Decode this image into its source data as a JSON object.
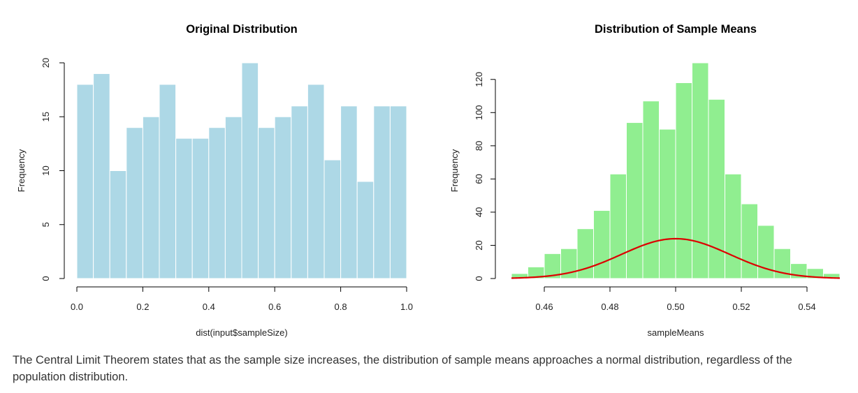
{
  "chart_data": [
    {
      "type": "bar",
      "title": "Original Distribution",
      "xlabel": "dist(input$sampleSize)",
      "ylabel": "Frequency",
      "bin_width": 0.05,
      "x_start": 0.0,
      "xlim": [
        0.0,
        1.0
      ],
      "ylim": [
        0,
        20
      ],
      "xticks": [
        0.0,
        0.2,
        0.4,
        0.6,
        0.8,
        1.0
      ],
      "xtick_labels": [
        "0.0",
        "0.2",
        "0.4",
        "0.6",
        "0.8",
        "1.0"
      ],
      "yticks": [
        0,
        5,
        10,
        15,
        20
      ],
      "values": [
        18,
        19,
        10,
        14,
        15,
        18,
        13,
        13,
        14,
        15,
        20,
        14,
        15,
        16,
        18,
        11,
        16,
        9,
        16,
        16
      ],
      "bar_color": "#ADD8E6",
      "grid": false
    },
    {
      "type": "bar",
      "title": "Distribution of Sample Means",
      "xlabel": "sampleMeans",
      "ylabel": "Frequency",
      "bin_width": 0.005,
      "x_start": 0.45,
      "xlim": [
        0.45,
        0.55
      ],
      "ylim": [
        0,
        130
      ],
      "xticks": [
        0.46,
        0.48,
        0.5,
        0.52,
        0.54
      ],
      "xtick_labels": [
        "0.46",
        "0.48",
        "0.50",
        "0.52",
        "0.54"
      ],
      "yticks": [
        0,
        20,
        40,
        60,
        80,
        100,
        120
      ],
      "values": [
        3,
        7,
        15,
        18,
        30,
        41,
        63,
        94,
        107,
        90,
        118,
        130,
        108,
        63,
        45,
        32,
        18,
        9,
        6,
        3
      ],
      "bar_color": "#90EE90",
      "curve": {
        "type": "normal",
        "mean": 0.5,
        "sd": 0.0165,
        "peak": 24,
        "color": "#DD0000"
      },
      "grid": false
    }
  ],
  "caption": "The Central Limit Theorem states that as the sample size increases, the distribution of sample means approaches a normal distribution, regardless of the population distribution."
}
